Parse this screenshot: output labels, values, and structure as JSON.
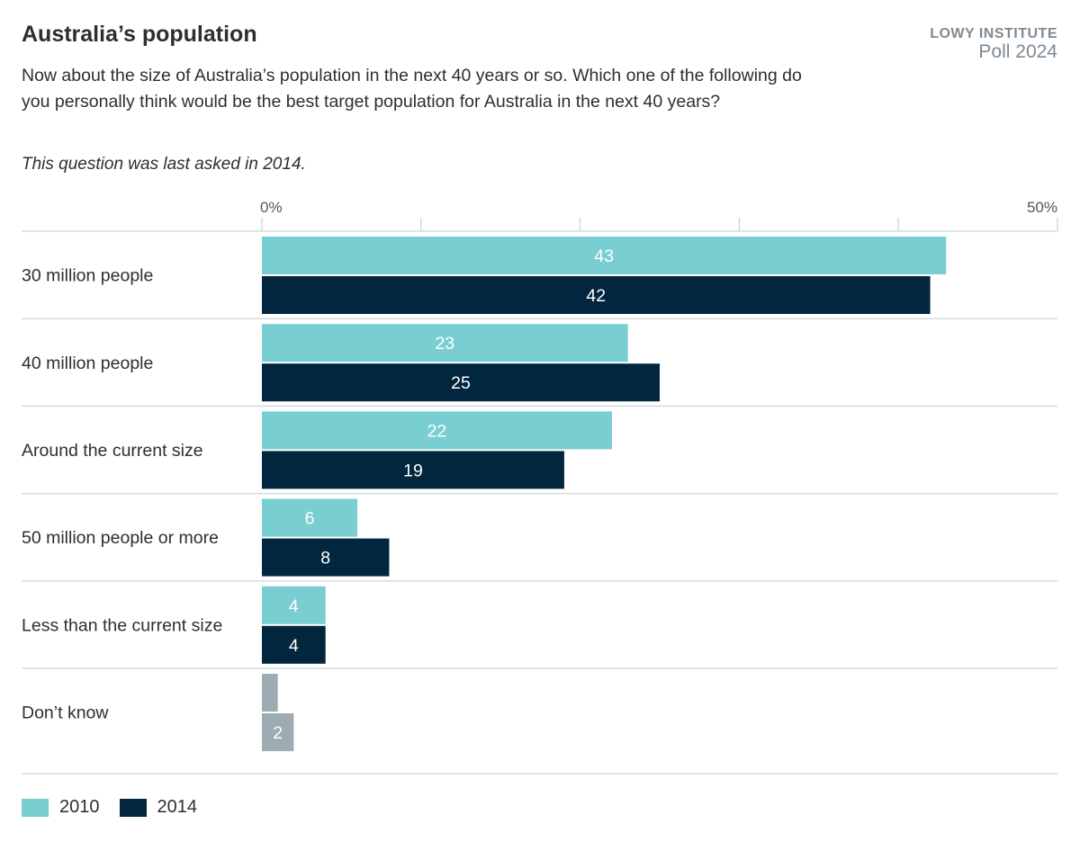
{
  "title": "Australia’s population",
  "brand": {
    "line1": "LOWY INSTITUTE",
    "line2": "Poll 2024"
  },
  "question": "Now about the size of Australia’s population in the next 40 years or so. Which one of the following do you personally think would be the best target population for Australia in the next 40 years?",
  "note": "This question was last asked in 2014.",
  "colors": {
    "2010": "#78ced1",
    "2014": "#01263d",
    "dont_know": "#9eabb3"
  },
  "chart_data": {
    "type": "bar",
    "orientation": "horizontal",
    "xlim": [
      0,
      50
    ],
    "ticks": [
      0,
      10,
      20,
      30,
      40,
      50
    ],
    "tick_labels": [
      "0%",
      "",
      "",
      "",
      "",
      "50%"
    ],
    "categories": [
      "30 million people",
      "40 million people",
      "Around the current size",
      "50 million people or more",
      "Less than the current size",
      "Don’t know"
    ],
    "series": [
      {
        "name": "2010",
        "values": [
          43,
          23,
          22,
          6,
          4,
          1
        ],
        "labels": [
          "43",
          "23",
          "22",
          "6",
          "4",
          ""
        ]
      },
      {
        "name": "2014",
        "values": [
          42,
          25,
          19,
          8,
          4,
          2
        ],
        "labels": [
          "42",
          "25",
          "19",
          "8",
          "4",
          "2"
        ]
      }
    ],
    "legend": "bottom-left",
    "grid": true
  }
}
